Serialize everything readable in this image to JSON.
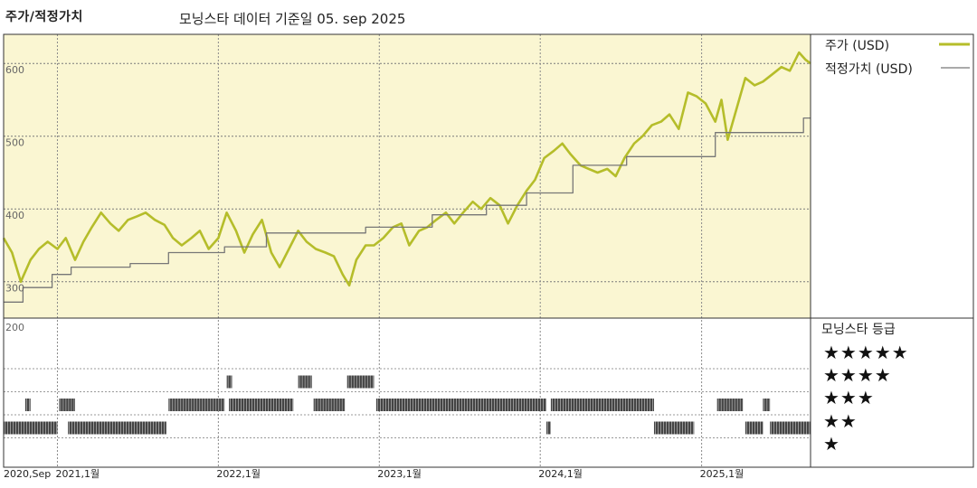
{
  "header": {
    "title": "주가/적정가치",
    "date_label": "모닝스타 데이터 기준일 05. sep 2025"
  },
  "legend": {
    "price_label": "주가 (USD)",
    "fair_label": "적정가치 (USD)",
    "rating_title": "모닝스타 등급",
    "stars": [
      "★★★★★",
      "★★★★",
      "★★★",
      "★★",
      "★"
    ]
  },
  "colors": {
    "price": "#b5bd2a",
    "fair": "#777777",
    "panel_bg": "#faf6d2",
    "rating_bar": "#444444"
  },
  "chart_data": {
    "type": "line",
    "x_ticks": [
      "2020,Sep",
      "2021,1월",
      "2022,1월",
      "2023,1월",
      "2024,1월",
      "2025,1월"
    ],
    "x_range": [
      "2020-09-01",
      "2025-09-05"
    ],
    "y_ticks": [
      600,
      500,
      400,
      300,
      200
    ],
    "y_range": [
      250,
      640
    ],
    "grid": true,
    "series": [
      {
        "name": "주가 (USD)",
        "points": [
          [
            "2020-09-01",
            360
          ],
          [
            "2020-09-20",
            340
          ],
          [
            "2020-10-10",
            300
          ],
          [
            "2020-11-01",
            330
          ],
          [
            "2020-11-20",
            345
          ],
          [
            "2020-12-10",
            355
          ],
          [
            "2021-01-01",
            345
          ],
          [
            "2021-01-20",
            360
          ],
          [
            "2021-02-10",
            330
          ],
          [
            "2021-03-01",
            355
          ],
          [
            "2021-03-20",
            375
          ],
          [
            "2021-04-10",
            395
          ],
          [
            "2021-05-01",
            380
          ],
          [
            "2021-05-20",
            370
          ],
          [
            "2021-06-10",
            385
          ],
          [
            "2021-07-01",
            390
          ],
          [
            "2021-07-20",
            395
          ],
          [
            "2021-08-10",
            385
          ],
          [
            "2021-09-01",
            378
          ],
          [
            "2021-09-20",
            360
          ],
          [
            "2021-10-10",
            350
          ],
          [
            "2021-11-01",
            360
          ],
          [
            "2021-11-20",
            370
          ],
          [
            "2021-12-10",
            345
          ],
          [
            "2022-01-01",
            360
          ],
          [
            "2022-01-20",
            395
          ],
          [
            "2022-02-10",
            370
          ],
          [
            "2022-03-01",
            340
          ],
          [
            "2022-03-20",
            365
          ],
          [
            "2022-04-10",
            385
          ],
          [
            "2022-05-01",
            340
          ],
          [
            "2022-05-20",
            320
          ],
          [
            "2022-06-10",
            345
          ],
          [
            "2022-07-01",
            370
          ],
          [
            "2022-07-20",
            355
          ],
          [
            "2022-08-10",
            345
          ],
          [
            "2022-09-01",
            340
          ],
          [
            "2022-09-20",
            335
          ],
          [
            "2022-10-10",
            310
          ],
          [
            "2022-10-25",
            295
          ],
          [
            "2022-11-10",
            330
          ],
          [
            "2022-12-01",
            350
          ],
          [
            "2022-12-20",
            350
          ],
          [
            "2023-01-10",
            360
          ],
          [
            "2023-02-01",
            375
          ],
          [
            "2023-02-20",
            380
          ],
          [
            "2023-03-10",
            350
          ],
          [
            "2023-04-01",
            370
          ],
          [
            "2023-04-20",
            375
          ],
          [
            "2023-05-10",
            385
          ],
          [
            "2023-06-01",
            395
          ],
          [
            "2023-06-20",
            380
          ],
          [
            "2023-07-10",
            395
          ],
          [
            "2023-08-01",
            410
          ],
          [
            "2023-08-20",
            400
          ],
          [
            "2023-09-10",
            415
          ],
          [
            "2023-10-01",
            405
          ],
          [
            "2023-10-20",
            380
          ],
          [
            "2023-11-10",
            405
          ],
          [
            "2023-12-01",
            425
          ],
          [
            "2023-12-20",
            440
          ],
          [
            "2024-01-10",
            470
          ],
          [
            "2024-02-01",
            480
          ],
          [
            "2024-02-20",
            490
          ],
          [
            "2024-03-10",
            475
          ],
          [
            "2024-04-01",
            460
          ],
          [
            "2024-04-20",
            455
          ],
          [
            "2024-05-10",
            450
          ],
          [
            "2024-06-01",
            455
          ],
          [
            "2024-06-20",
            445
          ],
          [
            "2024-07-10",
            470
          ],
          [
            "2024-08-01",
            490
          ],
          [
            "2024-08-20",
            500
          ],
          [
            "2024-09-10",
            515
          ],
          [
            "2024-10-01",
            520
          ],
          [
            "2024-10-20",
            530
          ],
          [
            "2024-11-10",
            510
          ],
          [
            "2024-12-01",
            560
          ],
          [
            "2024-12-20",
            555
          ],
          [
            "2025-01-10",
            545
          ],
          [
            "2025-02-01",
            520
          ],
          [
            "2025-02-15",
            550
          ],
          [
            "2025-03-01",
            495
          ],
          [
            "2025-03-20",
            535
          ],
          [
            "2025-04-10",
            580
          ],
          [
            "2025-05-01",
            570
          ],
          [
            "2025-05-20",
            575
          ],
          [
            "2025-06-10",
            585
          ],
          [
            "2025-07-01",
            595
          ],
          [
            "2025-07-20",
            590
          ],
          [
            "2025-08-10",
            615
          ],
          [
            "2025-08-25",
            605
          ],
          [
            "2025-09-05",
            600
          ]
        ]
      },
      {
        "name": "적정가치 (USD)",
        "points": [
          [
            "2020-09-01",
            272
          ],
          [
            "2020-10-15",
            272
          ],
          [
            "2020-10-15",
            292
          ],
          [
            "2020-12-20",
            292
          ],
          [
            "2020-12-20",
            310
          ],
          [
            "2021-02-01",
            310
          ],
          [
            "2021-02-01",
            320
          ],
          [
            "2021-06-15",
            320
          ],
          [
            "2021-06-15",
            325
          ],
          [
            "2021-09-10",
            325
          ],
          [
            "2021-09-10",
            340
          ],
          [
            "2022-01-15",
            340
          ],
          [
            "2022-01-15",
            348
          ],
          [
            "2022-04-20",
            348
          ],
          [
            "2022-04-20",
            367
          ],
          [
            "2022-12-01",
            367
          ],
          [
            "2022-12-01",
            375
          ],
          [
            "2023-05-01",
            375
          ],
          [
            "2023-05-01",
            392
          ],
          [
            "2023-09-01",
            392
          ],
          [
            "2023-09-01",
            405
          ],
          [
            "2023-12-01",
            405
          ],
          [
            "2023-12-01",
            422
          ],
          [
            "2024-03-15",
            422
          ],
          [
            "2024-03-15",
            460
          ],
          [
            "2024-07-15",
            460
          ],
          [
            "2024-07-15",
            472
          ],
          [
            "2025-02-01",
            472
          ],
          [
            "2025-02-01",
            505
          ],
          [
            "2025-08-20",
            505
          ],
          [
            "2025-08-20",
            525
          ],
          [
            "2025-09-05",
            525
          ]
        ]
      }
    ],
    "rating_periods": [
      {
        "stars": 4,
        "start": "2022-01-20",
        "end": "2022-02-01"
      },
      {
        "stars": 4,
        "start": "2022-07-01",
        "end": "2022-08-01"
      },
      {
        "stars": 4,
        "start": "2022-10-20",
        "end": "2022-12-20"
      },
      {
        "stars": 3,
        "start": "2020-10-20",
        "end": "2020-11-01"
      },
      {
        "stars": 3,
        "start": "2021-01-05",
        "end": "2021-02-10"
      },
      {
        "stars": 3,
        "start": "2021-09-10",
        "end": "2022-01-15"
      },
      {
        "stars": 3,
        "start": "2022-01-25",
        "end": "2022-06-20"
      },
      {
        "stars": 3,
        "start": "2022-08-05",
        "end": "2022-10-15"
      },
      {
        "stars": 3,
        "start": "2022-12-25",
        "end": "2024-01-15"
      },
      {
        "stars": 3,
        "start": "2024-01-25",
        "end": "2024-09-15"
      },
      {
        "stars": 3,
        "start": "2025-02-05",
        "end": "2025-04-05"
      },
      {
        "stars": 3,
        "start": "2025-05-20",
        "end": "2025-06-05"
      },
      {
        "stars": 2,
        "start": "2020-09-01",
        "end": "2021-01-01"
      },
      {
        "stars": 2,
        "start": "2021-01-25",
        "end": "2021-09-05"
      },
      {
        "stars": 2,
        "start": "2024-01-15",
        "end": "2024-01-25"
      },
      {
        "stars": 2,
        "start": "2024-09-15",
        "end": "2024-12-15"
      },
      {
        "stars": 2,
        "start": "2025-04-10",
        "end": "2025-05-20"
      },
      {
        "stars": 2,
        "start": "2025-06-05",
        "end": "2025-09-05"
      }
    ]
  }
}
